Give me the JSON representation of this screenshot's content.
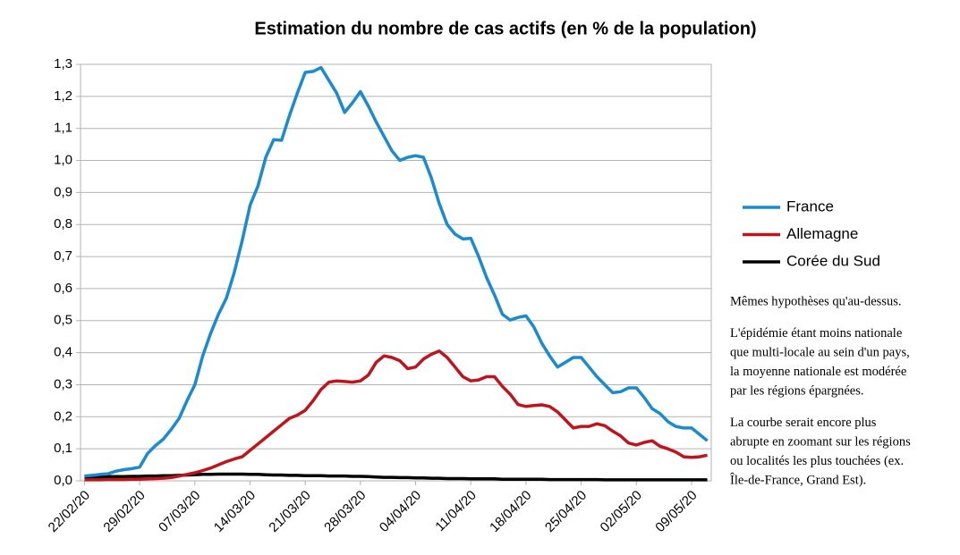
{
  "chart_data": {
    "type": "line",
    "title": "Estimation du nombre de cas actifs (en % de la population)",
    "categories": [
      "22/02/20",
      null,
      null,
      null,
      null,
      null,
      null,
      "29/02/20",
      null,
      null,
      null,
      null,
      null,
      null,
      "07/03/20",
      null,
      null,
      null,
      null,
      null,
      null,
      "14/03/20",
      null,
      null,
      null,
      null,
      null,
      null,
      "21/03/20",
      null,
      null,
      null,
      null,
      null,
      null,
      "28/03/20",
      null,
      null,
      null,
      null,
      null,
      null,
      "04/04/20",
      null,
      null,
      null,
      null,
      null,
      null,
      "11/04/20",
      null,
      null,
      null,
      null,
      null,
      null,
      "18/04/20",
      null,
      null,
      null,
      null,
      null,
      null,
      "25/04/20",
      null,
      null,
      null,
      null,
      null,
      null,
      "02/05/20",
      null,
      null,
      null,
      null,
      null,
      null,
      "09/05/20",
      null,
      null
    ],
    "series": [
      {
        "name": "France",
        "color": "#1a8bd0",
        "values": [
          0.015,
          0.017,
          0.02,
          0.022,
          0.03,
          0.035,
          0.038,
          0.043,
          0.085,
          0.11,
          0.13,
          0.16,
          0.195,
          0.25,
          0.3,
          0.39,
          0.46,
          0.52,
          0.57,
          0.65,
          0.75,
          0.86,
          0.92,
          1.01,
          1.065,
          1.063,
          1.14,
          1.21,
          1.275,
          1.278,
          1.29,
          1.25,
          1.21,
          1.15,
          1.18,
          1.215,
          1.17,
          1.12,
          1.075,
          1.03,
          1.0,
          1.01,
          1.015,
          1.01,
          0.945,
          0.865,
          0.8,
          0.77,
          0.755,
          0.757,
          0.7,
          0.635,
          0.58,
          0.52,
          0.502,
          0.51,
          0.515,
          0.48,
          0.43,
          0.39,
          0.355,
          0.37,
          0.385,
          0.385,
          0.355,
          0.325,
          0.3,
          0.275,
          0.278,
          0.29,
          0.29,
          0.26,
          0.225,
          0.21,
          0.185,
          0.17,
          0.165,
          0.165,
          0.145,
          0.125
        ]
      },
      {
        "name": "Allemagne",
        "color": "#c0141c",
        "values": [
          0.003,
          0.003,
          0.003,
          0.004,
          0.004,
          0.004,
          0.005,
          0.005,
          0.006,
          0.007,
          0.008,
          0.01,
          0.015,
          0.02,
          0.025,
          0.032,
          0.04,
          0.05,
          0.06,
          0.068,
          0.075,
          0.095,
          0.115,
          0.135,
          0.155,
          0.175,
          0.195,
          0.205,
          0.22,
          0.25,
          0.285,
          0.308,
          0.312,
          0.31,
          0.308,
          0.312,
          0.33,
          0.37,
          0.39,
          0.385,
          0.375,
          0.35,
          0.355,
          0.38,
          0.395,
          0.405,
          0.385,
          0.355,
          0.325,
          0.312,
          0.315,
          0.325,
          0.325,
          0.295,
          0.27,
          0.238,
          0.232,
          0.235,
          0.237,
          0.232,
          0.215,
          0.19,
          0.165,
          0.17,
          0.17,
          0.178,
          0.172,
          0.155,
          0.14,
          0.118,
          0.112,
          0.12,
          0.125,
          0.108,
          0.1,
          0.09,
          0.075,
          0.073,
          0.075,
          0.08
        ]
      },
      {
        "name": "Corée du Sud",
        "color": "#000000",
        "values": [
          0.012,
          0.012,
          0.012,
          0.013,
          0.013,
          0.013,
          0.014,
          0.014,
          0.015,
          0.015,
          0.016,
          0.016,
          0.017,
          0.018,
          0.019,
          0.02,
          0.02,
          0.021,
          0.021,
          0.021,
          0.021,
          0.02,
          0.02,
          0.019,
          0.018,
          0.018,
          0.017,
          0.017,
          0.016,
          0.016,
          0.016,
          0.015,
          0.015,
          0.015,
          0.014,
          0.014,
          0.013,
          0.012,
          0.011,
          0.011,
          0.01,
          0.01,
          0.009,
          0.009,
          0.008,
          0.008,
          0.007,
          0.007,
          0.007,
          0.006,
          0.006,
          0.006,
          0.006,
          0.005,
          0.005,
          0.005,
          0.005,
          0.005,
          0.005,
          0.004,
          0.004,
          0.004,
          0.004,
          0.004,
          0.004,
          0.004,
          0.003,
          0.003,
          0.003,
          0.003,
          0.003,
          0.003,
          0.003,
          0.003,
          0.003,
          0.003,
          0.003,
          0.003,
          0.003,
          0.003
        ]
      }
    ],
    "ylim": [
      0,
      1.3
    ],
    "yticks": [
      {
        "value": 0,
        "label": "0,0"
      },
      {
        "value": 0.1,
        "label": "0,1"
      },
      {
        "value": 0.2,
        "label": "0,2"
      },
      {
        "value": 0.3,
        "label": "0,3"
      },
      {
        "value": 0.4,
        "label": "0,4"
      },
      {
        "value": 0.5,
        "label": "0,5"
      },
      {
        "value": 0.6,
        "label": "0,6"
      },
      {
        "value": 0.7,
        "label": "0,7"
      },
      {
        "value": 0.8,
        "label": "0,8"
      },
      {
        "value": 0.9,
        "label": "0,9"
      },
      {
        "value": 1.0,
        "label": "1,0"
      },
      {
        "value": 1.1,
        "label": "1,1"
      },
      {
        "value": 1.2,
        "label": "1,2"
      },
      {
        "value": 1.3,
        "label": "1,3"
      }
    ],
    "grid": true,
    "legend": "right",
    "annotations": [
      [
        "Mêmes hypothèses qu'au-dessus."
      ],
      [
        "L'épidémie étant moins nationale",
        "que multi-locale au sein d'un pays,",
        "la moyenne nationale est modérée",
        "par les régions épargnées."
      ],
      [
        "La courbe serait encore plus",
        "abrupte en zoomant sur les régions",
        "ou localités les plus touchées (ex.",
        "Île-de-France, Grand Est)."
      ]
    ]
  }
}
